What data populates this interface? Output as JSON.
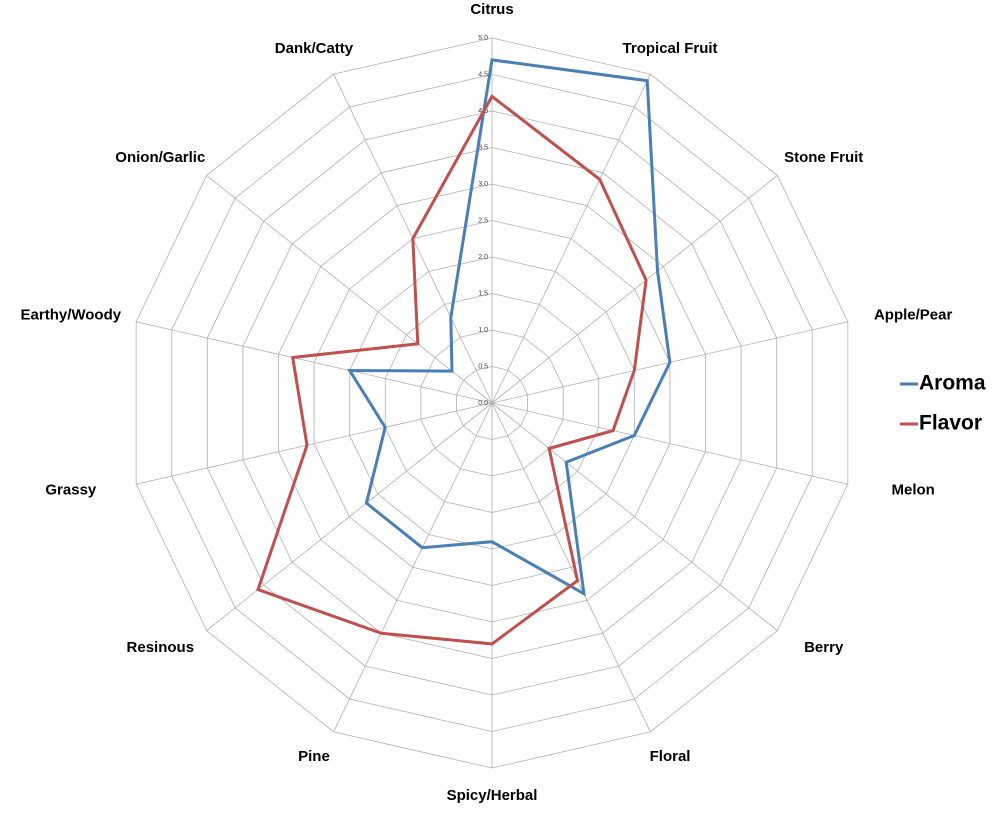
{
  "chart_data": {
    "type": "radar",
    "categories": [
      "Citrus",
      "Tropical Fruit",
      "Stone Fruit",
      "Apple/Pear",
      "Melon",
      "Berry",
      "Floral",
      "Spicy/Herbal",
      "Pine",
      "Resinous",
      "Grassy",
      "Earthy/Woody",
      "Onion/Garlic",
      "Dank/Catty"
    ],
    "series": [
      {
        "name": "Aroma",
        "color": "#4a7fb5",
        "values": [
          4.7,
          4.9,
          2.9,
          2.5,
          2.0,
          1.3,
          2.9,
          1.9,
          2.2,
          2.2,
          1.5,
          2.0,
          0.7,
          1.3
        ]
      },
      {
        "name": "Flavor",
        "color": "#c0504d",
        "values": [
          4.2,
          3.4,
          2.7,
          2.0,
          1.7,
          1.0,
          2.7,
          3.3,
          3.5,
          4.1,
          2.6,
          2.8,
          1.3,
          2.5
        ]
      }
    ],
    "ylim": [
      0,
      5
    ],
    "yticks": [
      {
        "value": 0,
        "label": "0.0"
      },
      {
        "value": 0.5,
        "label": "0.5"
      },
      {
        "value": 1,
        "label": "1.0"
      },
      {
        "value": 1.5,
        "label": "1.5"
      },
      {
        "value": 2,
        "label": "2.0"
      },
      {
        "value": 2.5,
        "label": "2.5"
      },
      {
        "value": 3,
        "label": "3.0"
      },
      {
        "value": 3.5,
        "label": "3.5"
      },
      {
        "value": 4,
        "label": "4.0"
      },
      {
        "value": 4.5,
        "label": "4.5"
      },
      {
        "value": 5,
        "label": "5.0"
      }
    ],
    "grid": true,
    "legend": "right"
  }
}
